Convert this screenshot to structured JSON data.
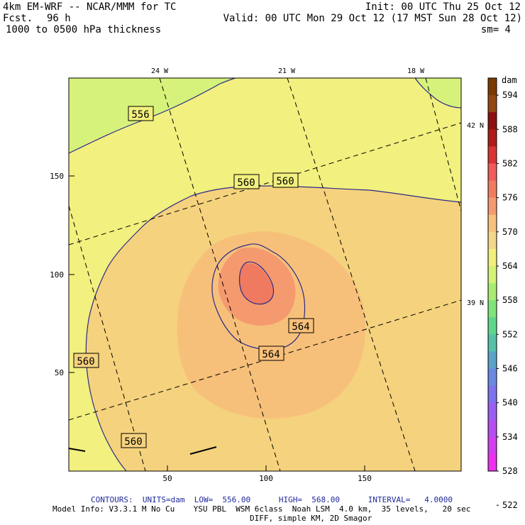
{
  "header": {
    "line1_left": "4km EM-WRF -- NCAR/MMM for TC",
    "line2_left_label": "Fcst.",
    "line2_left_value": "96 h",
    "line3_left": "1000 to 0500 hPa thickness",
    "line1_right": "Init: 00 UTC Thu 25 Oct 12",
    "line2_right": "Valid: 00 UTC Mon 29 Oct 12 (17 MST Sun 28 Oct 12)",
    "line3_right": "sm= 4"
  },
  "map": {
    "top_lon_labels": [
      "24 W",
      "21 W",
      "18 W"
    ],
    "right_lat_labels": [
      "42 N",
      "39 N"
    ],
    "x_ticks": [
      "50",
      "100",
      "150"
    ],
    "y_ticks": [
      "50",
      "100",
      "150"
    ],
    "contour_labels": [
      "556",
      "560",
      "560",
      "564",
      "564",
      "560",
      "560"
    ]
  },
  "colorbar": {
    "unit": "dam",
    "levels": [
      "594",
      "588",
      "582",
      "576",
      "570",
      "564",
      "558",
      "552",
      "546",
      "540",
      "534",
      "528",
      "522"
    ],
    "colors": [
      "#7a3b00",
      "#93480f",
      "#8c1010",
      "#b01a1a",
      "#d93434",
      "#f05b5b",
      "#f07c5f",
      "#f49a70",
      "#f7c17c",
      "#f4d78a",
      "#f2f07c",
      "#d4f276",
      "#a8ec72",
      "#7fe47a",
      "#5fd68c",
      "#56c0a8",
      "#5ba2c9",
      "#6a8ae0",
      "#7d73ec",
      "#9a5ef0",
      "#b64ef0",
      "#d23ff0",
      "#ee30ee"
    ]
  },
  "footer": {
    "contours": "CONTOURS:  UNITS=dam  LOW=  556.00      HIGH=  568.00      INTERVAL=   4.0000",
    "model_info_1": "Model Info: V3.3.1 M No Cu    YSU PBL  WSM 6class  Noah LSM  4.0 km,  35 levels,   20 sec",
    "model_info_2": "DIFF, simple KM, 2D Smagor"
  }
}
